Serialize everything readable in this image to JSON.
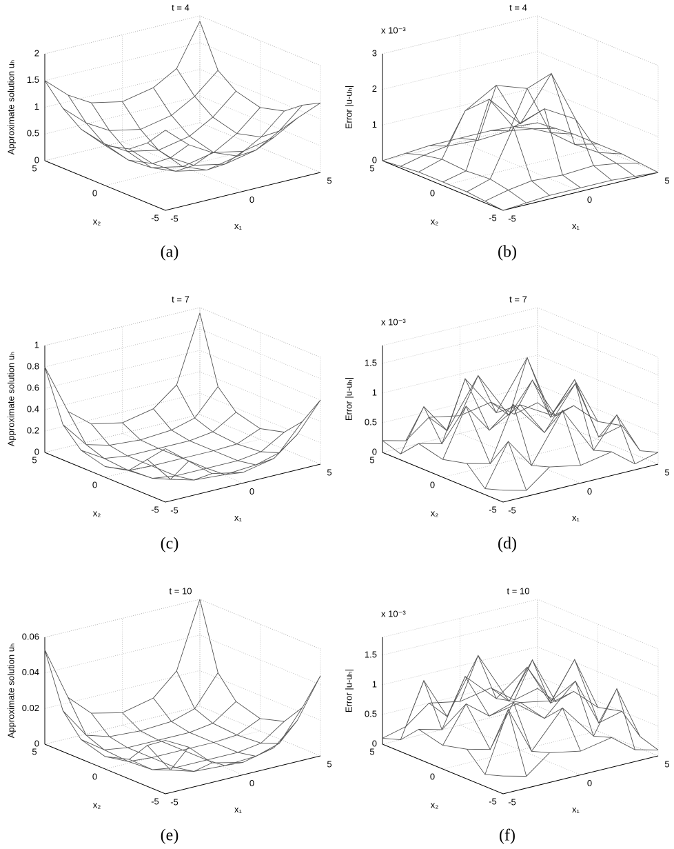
{
  "chart_data": [
    {
      "type": "surface",
      "title": "t = 4",
      "caption": "(a)",
      "xlabel": "x₁",
      "ylabel": "x₂",
      "zlabel": "Approximate solution uₕ",
      "x": [
        -5,
        -3.5,
        -2,
        0,
        2,
        3.5,
        5
      ],
      "y": [
        -5,
        -3.5,
        -2,
        0,
        2,
        3.5,
        5
      ],
      "z": [
        [
          1.5,
          1.12,
          0.87,
          0.75,
          0.87,
          1.12,
          1.3
        ],
        [
          1.12,
          0.74,
          0.49,
          0.37,
          0.49,
          0.74,
          1.12
        ],
        [
          0.87,
          0.49,
          0.24,
          0.12,
          0.24,
          0.49,
          0.87
        ],
        [
          0.75,
          0.37,
          0.12,
          0,
          0.12,
          0.37,
          0.75
        ],
        [
          0.87,
          0.49,
          0.24,
          0.12,
          0.24,
          0.49,
          0.87
        ],
        [
          1.12,
          0.74,
          0.49,
          0.37,
          0.49,
          0.74,
          1.12
        ],
        [
          1.5,
          1.12,
          0.87,
          0.75,
          0.87,
          1.12,
          1.9
        ]
      ],
      "xlim": [
        -5,
        5
      ],
      "ylim": [
        -5,
        5
      ],
      "zlim": [
        0,
        2
      ],
      "xticks": [
        -5,
        0,
        5
      ],
      "yticks": [
        -5,
        0,
        5
      ],
      "zticks": [
        0,
        0.5,
        1,
        1.5,
        2
      ],
      "grid": true,
      "color": "#555555"
    },
    {
      "type": "surface",
      "title": "t = 4",
      "caption": "(b)",
      "xlabel": "x₁",
      "ylabel": "x₂",
      "zlabel": "Error |u-uₕ|",
      "zscale_label": "x 10⁻³",
      "x": [
        -5,
        -3.5,
        -2,
        0,
        2,
        3.5,
        5
      ],
      "y": [
        -5,
        -3.5,
        -2,
        0,
        2,
        3.5,
        5
      ],
      "z": [
        [
          0,
          0.05,
          0.1,
          0.1,
          0.1,
          0.05,
          0
        ],
        [
          0.05,
          0.2,
          0.3,
          0.25,
          0.3,
          0.2,
          0.05
        ],
        [
          0.1,
          0.3,
          1.6,
          1.9,
          1.4,
          0.3,
          0.1
        ],
        [
          0.1,
          0.25,
          2.1,
          1.2,
          2.4,
          0.25,
          0.1
        ],
        [
          0.1,
          0.3,
          1.5,
          2.0,
          1.7,
          0.3,
          0.1
        ],
        [
          0.05,
          0.2,
          0.3,
          0.25,
          0.3,
          0.2,
          0.05
        ],
        [
          0,
          0.05,
          0.1,
          0.1,
          0.1,
          0.05,
          0
        ]
      ],
      "xlim": [
        -5,
        5
      ],
      "ylim": [
        -5,
        5
      ],
      "zlim": [
        0,
        3
      ],
      "xticks": [
        -5,
        0,
        5
      ],
      "yticks": [
        -5,
        0,
        5
      ],
      "zticks": [
        0,
        1,
        2,
        3
      ],
      "grid": true,
      "color": "#555555"
    },
    {
      "type": "surface",
      "title": "t = 7",
      "caption": "(c)",
      "xlabel": "x₁",
      "ylabel": "x₂",
      "zlabel": "Approximate solution uₕ",
      "x": [
        -5,
        -3.5,
        -2,
        0,
        2,
        3.5,
        5
      ],
      "y": [
        -5,
        -3.5,
        -2,
        0,
        2,
        3.5,
        5
      ],
      "z": [
        [
          0.5,
          0.33,
          0.16,
          0.1,
          0.16,
          0.33,
          0.6
        ],
        [
          0.33,
          0.09,
          0.03,
          0.01,
          0.03,
          0.09,
          0.33
        ],
        [
          0.16,
          0.03,
          0,
          0,
          0,
          0.03,
          0.16
        ],
        [
          0.1,
          0.01,
          0,
          0,
          0,
          0.01,
          0.1
        ],
        [
          0.16,
          0.03,
          0,
          0,
          0,
          0.03,
          0.16
        ],
        [
          0.33,
          0.09,
          0.03,
          0.01,
          0.03,
          0.09,
          0.33
        ],
        [
          0.8,
          0.33,
          0.16,
          0.1,
          0.16,
          0.33,
          0.95
        ]
      ],
      "xlim": [
        -5,
        5
      ],
      "ylim": [
        -5,
        5
      ],
      "zlim": [
        0,
        1
      ],
      "xticks": [
        -5,
        0,
        5
      ],
      "yticks": [
        -5,
        0,
        5
      ],
      "zticks": [
        0,
        0.2,
        0.4,
        0.6,
        0.8,
        1
      ],
      "grid": true,
      "color": "#555555"
    },
    {
      "type": "surface",
      "title": "t = 7",
      "caption": "(d)",
      "xlabel": "x₁",
      "ylabel": "x₂",
      "zlabel": "Error |u-uₕ|",
      "zscale_label": "x 10⁻³",
      "x": [
        -5,
        -3.5,
        -2,
        0,
        2,
        3.5,
        5
      ],
      "y": [
        -5,
        -3.5,
        -2,
        0,
        2,
        3.5,
        5
      ],
      "z": [
        [
          0.2,
          0.1,
          0.4,
          0.3,
          0.4,
          0.1,
          0.2
        ],
        [
          0.1,
          0.8,
          0.3,
          1.1,
          0.3,
          0.8,
          0.1
        ],
        [
          0.4,
          0.3,
          1.2,
          0.6,
          1.3,
          0.3,
          0.4
        ],
        [
          0.3,
          1.1,
          0.6,
          0.9,
          0.6,
          1.1,
          0.3
        ],
        [
          0.4,
          0.3,
          1.3,
          0.6,
          1.4,
          0.3,
          0.4
        ],
        [
          0.1,
          0.8,
          0.3,
          1.1,
          0.3,
          0.8,
          0.1
        ],
        [
          0.2,
          0.1,
          0.4,
          0.3,
          0.4,
          0.1,
          0.2
        ]
      ],
      "xlim": [
        -5,
        5
      ],
      "ylim": [
        -5,
        5
      ],
      "zlim": [
        0,
        1.8
      ],
      "xticks": [
        -5,
        0,
        5
      ],
      "yticks": [
        -5,
        0,
        5
      ],
      "zticks": [
        0,
        0.5,
        1,
        1.5
      ],
      "grid": true,
      "color": "#555555"
    },
    {
      "type": "surface",
      "title": "t = 10",
      "caption": "(e)",
      "xlabel": "x₁",
      "ylabel": "x₂",
      "zlabel": "Approximate solution uₕ",
      "x": [
        -5,
        -3.5,
        -2,
        0,
        2,
        3.5,
        5
      ],
      "y": [
        -5,
        -3.5,
        -2,
        0,
        2,
        3.5,
        5
      ],
      "z": [
        [
          0.03,
          0.023,
          0.011,
          0.007,
          0.011,
          0.023,
          0.045
        ],
        [
          0.023,
          0.006,
          0.002,
          0.001,
          0.002,
          0.006,
          0.023
        ],
        [
          0.011,
          0.002,
          0,
          0,
          0,
          0.002,
          0.011
        ],
        [
          0.007,
          0.001,
          0,
          0,
          0,
          0.001,
          0.007
        ],
        [
          0.011,
          0.002,
          0,
          0,
          0,
          0.002,
          0.011
        ],
        [
          0.023,
          0.006,
          0.002,
          0.001,
          0.002,
          0.006,
          0.023
        ],
        [
          0.053,
          0.023,
          0.011,
          0.007,
          0.011,
          0.023,
          0.06
        ]
      ],
      "xlim": [
        -5,
        5
      ],
      "ylim": [
        -5,
        5
      ],
      "zlim": [
        0,
        0.06
      ],
      "xticks": [
        -5,
        0,
        5
      ],
      "yticks": [
        -5,
        0,
        5
      ],
      "zticks": [
        0,
        0.02,
        0.04,
        0.06
      ],
      "grid": true,
      "color": "#555555"
    },
    {
      "type": "surface",
      "title": "t = 10",
      "caption": "(f)",
      "xlabel": "x₁",
      "ylabel": "x₂",
      "zlabel": "Error |u-uₕ|",
      "zscale_label": "x 10⁻³",
      "x": [
        -5,
        -3.5,
        -2,
        0,
        2,
        3.5,
        5
      ],
      "y": [
        -5,
        -3.5,
        -2,
        0,
        2,
        3.5,
        5
      ],
      "z": [
        [
          0.3,
          0.2,
          0.5,
          0.4,
          0.5,
          0.2,
          0.1
        ],
        [
          0.2,
          1.2,
          0.4,
          1.0,
          0.4,
          1.1,
          0.2
        ],
        [
          0.5,
          0.4,
          1.1,
          0.7,
          1.2,
          0.4,
          0.5
        ],
        [
          0.4,
          1.0,
          0.7,
          0.8,
          0.7,
          1.3,
          0.4
        ],
        [
          0.5,
          0.4,
          1.2,
          0.7,
          1.1,
          0.4,
          0.5
        ],
        [
          0.2,
          1.1,
          0.4,
          1.3,
          0.4,
          1.0,
          0.2
        ],
        [
          0.1,
          0.2,
          0.5,
          0.4,
          0.5,
          0.2,
          0.3
        ]
      ],
      "xlim": [
        -5,
        5
      ],
      "ylim": [
        -5,
        5
      ],
      "zlim": [
        0,
        1.8
      ],
      "xticks": [
        -5,
        0,
        5
      ],
      "yticks": [
        -5,
        0,
        5
      ],
      "zticks": [
        0,
        0.5,
        1,
        1.5
      ],
      "grid": true,
      "color": "#555555"
    }
  ]
}
